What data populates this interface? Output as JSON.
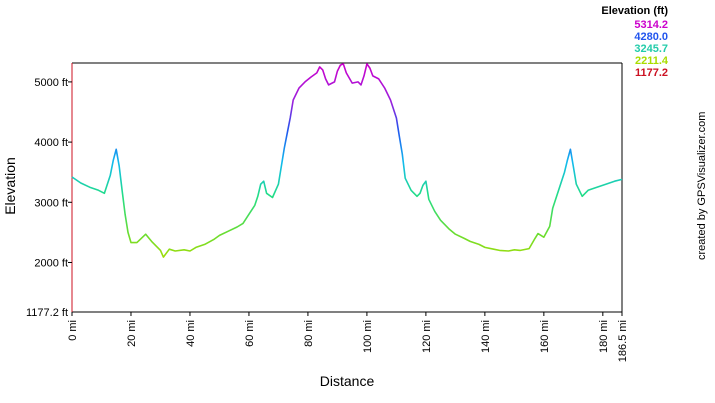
{
  "chart_data": {
    "type": "line",
    "title": "",
    "xlabel": "Distance",
    "ylabel": "Elevation",
    "x_unit": "mi",
    "y_unit": "ft",
    "xlim": [
      0,
      186.5
    ],
    "ylim": [
      1177.2,
      5314.2
    ],
    "x_ticks": [
      0,
      20,
      40,
      60,
      80,
      100,
      120,
      140,
      160,
      180,
      186.5
    ],
    "x_tick_labels": [
      "0 mi",
      "20 mi",
      "40 mi",
      "60 mi",
      "80 mi",
      "100 mi",
      "120 mi",
      "140 mi",
      "160 mi",
      "180 mi",
      "186.5 mi"
    ],
    "y_ticks": [
      1177.2,
      2000,
      3000,
      4000,
      5000
    ],
    "y_tick_labels": [
      "1177.2 ft",
      "2000 ft",
      "3000 ft",
      "4000 ft",
      "5000 ft"
    ],
    "grid": false,
    "legend": {
      "title": "Elevation (ft)",
      "placement": "top-right",
      "entries": [
        {
          "label": "5314.2",
          "color": "#cc00cc"
        },
        {
          "label": "4280.0",
          "color": "#2255ee"
        },
        {
          "label": "3245.7",
          "color": "#22ccaa"
        },
        {
          "label": "2211.4",
          "color": "#aadd00"
        },
        {
          "label": "1177.2",
          "color": "#cc1122"
        }
      ]
    },
    "series": [
      {
        "x": [
          0,
          3,
          6,
          9,
          11,
          13,
          14,
          15,
          16,
          17,
          18,
          19,
          20,
          22,
          25,
          27,
          30,
          31,
          33,
          35,
          38,
          40,
          42,
          45,
          48,
          50,
          53,
          56,
          58,
          60,
          62,
          63,
          64,
          65,
          66,
          68,
          70,
          72,
          74,
          75,
          77,
          79,
          81,
          83,
          84,
          85,
          86,
          87,
          89,
          90,
          91,
          92,
          93,
          95,
          97,
          98,
          99,
          100,
          101,
          102,
          104,
          106,
          108,
          110,
          111,
          112,
          113,
          115,
          117,
          118,
          119,
          120,
          121,
          123,
          125,
          128,
          130,
          133,
          135,
          138,
          140,
          143,
          145,
          148,
          150,
          152,
          155,
          157,
          158,
          160,
          162,
          163,
          165,
          167,
          168,
          169,
          170,
          171,
          173,
          175,
          178,
          181,
          184,
          186.5
        ],
        "y": [
          3420,
          3320,
          3250,
          3200,
          3150,
          3450,
          3700,
          3880,
          3600,
          3200,
          2800,
          2500,
          2330,
          2330,
          2470,
          2350,
          2200,
          2090,
          2220,
          2190,
          2210,
          2190,
          2250,
          2300,
          2380,
          2450,
          2520,
          2590,
          2650,
          2800,
          2950,
          3100,
          3300,
          3350,
          3150,
          3080,
          3300,
          3900,
          4400,
          4700,
          4900,
          5000,
          5080,
          5150,
          5250,
          5200,
          5050,
          4950,
          5000,
          5180,
          5280,
          5300,
          5150,
          4980,
          5000,
          4950,
          5100,
          5300,
          5230,
          5100,
          5050,
          4900,
          4700,
          4400,
          4100,
          3800,
          3400,
          3200,
          3100,
          3150,
          3280,
          3350,
          3050,
          2850,
          2700,
          2550,
          2470,
          2400,
          2350,
          2300,
          2250,
          2220,
          2200,
          2190,
          2210,
          2200,
          2230,
          2400,
          2480,
          2420,
          2600,
          2900,
          3200,
          3500,
          3700,
          3880,
          3600,
          3300,
          3100,
          3200,
          3250,
          3300,
          3350,
          3380
        ]
      }
    ]
  },
  "credit": "created by GPSVisualizer.com"
}
